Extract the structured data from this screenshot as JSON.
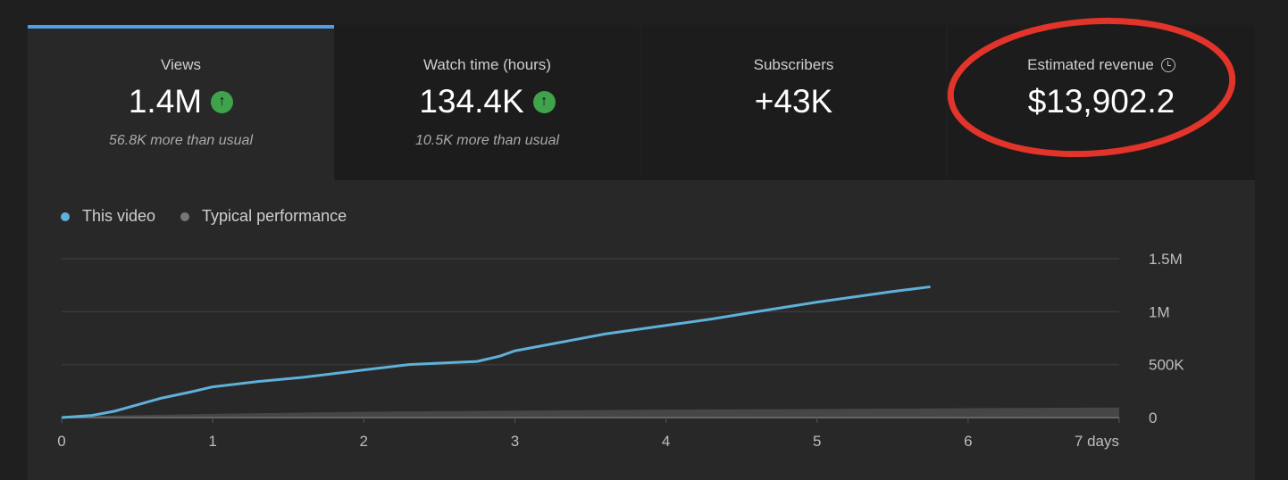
{
  "cards": [
    {
      "label": "Views",
      "value": "1.4M",
      "trend": "up-arrow-icon",
      "sub": "56.8K more than usual",
      "selected": true
    },
    {
      "label": "Watch time (hours)",
      "value": "134.4K",
      "trend": "up-arrow-icon",
      "sub": "10.5K more than usual"
    },
    {
      "label": "Subscribers",
      "value": "+43K"
    },
    {
      "label": "Estimated revenue",
      "value": "$13,902.2",
      "icon": "clock-icon",
      "highlighted_by": "red-circle-annotation"
    }
  ],
  "colors": {
    "accent": "#4f9ee8",
    "up": "#3ea34a",
    "this_video": "#5fb1d9",
    "typical": "#5a5a5a",
    "annotation": "#e2342a"
  },
  "chart_data": {
    "type": "line",
    "legend": [
      "This video",
      "Typical performance"
    ],
    "x_ticks": [
      "0",
      "1",
      "2",
      "3",
      "4",
      "5",
      "6",
      "7 days"
    ],
    "y_ticks": [
      "0",
      "500K",
      "1M",
      "1.5M"
    ],
    "xlim": [
      0,
      7
    ],
    "ylim": [
      0,
      1500000
    ],
    "grid": true,
    "series": [
      {
        "name": "This video",
        "x": [
          0,
          0.2,
          0.35,
          0.5,
          0.65,
          0.85,
          1.0,
          1.3,
          1.6,
          2.0,
          2.3,
          2.6,
          2.75,
          2.9,
          3.0,
          3.3,
          3.6,
          4.0,
          4.3,
          4.6,
          5.0,
          5.3,
          5.5,
          5.75
        ],
        "y": [
          0,
          20000,
          60000,
          120000,
          180000,
          240000,
          290000,
          340000,
          380000,
          450000,
          500000,
          520000,
          530000,
          580000,
          630000,
          710000,
          790000,
          870000,
          930000,
          1000000,
          1090000,
          1150000,
          1190000,
          1235000
        ]
      },
      {
        "name": "Typical performance",
        "x": [
          0,
          1,
          2,
          3,
          4,
          5,
          6,
          7
        ],
        "y": [
          10000,
          35000,
          55000,
          65000,
          75000,
          80000,
          88000,
          95000
        ],
        "style": "band"
      }
    ]
  }
}
